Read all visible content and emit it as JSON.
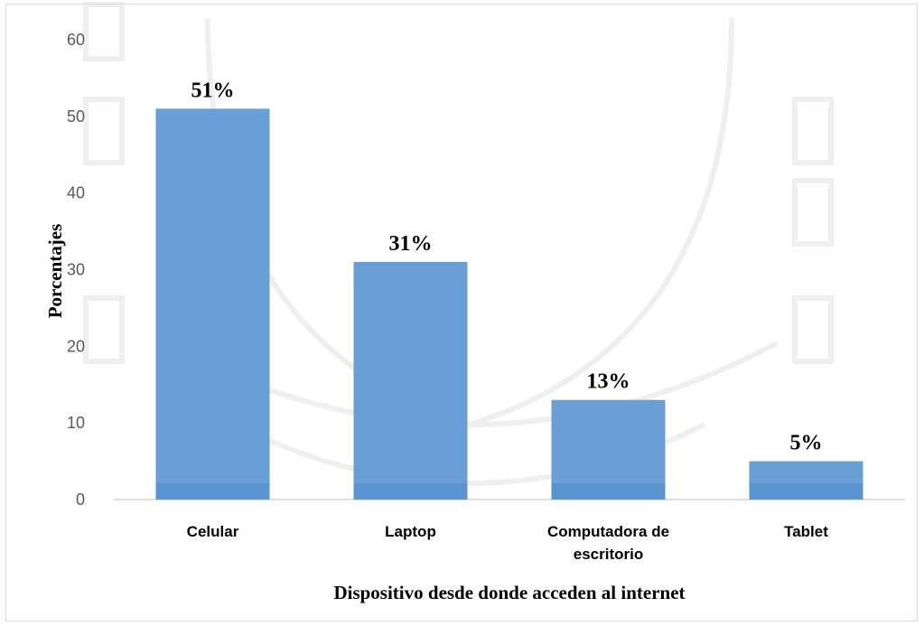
{
  "chart_data": {
    "type": "bar",
    "categories": [
      "Celular",
      "Laptop",
      "Computadora de escritorio",
      "Tablet"
    ],
    "category_lines": [
      [
        "Celular"
      ],
      [
        "Laptop"
      ],
      [
        "Computadora de",
        "escritorio"
      ],
      [
        "Tablet"
      ]
    ],
    "values": [
      51,
      31,
      13,
      5
    ],
    "data_labels": [
      "51%",
      "31%",
      "13%",
      "5%"
    ],
    "title": "",
    "xlabel": "Dispositivo desde donde acceden al internet",
    "ylabel": "Porcentajes",
    "ylim": [
      0,
      60
    ],
    "yticks": [
      0,
      10,
      20,
      30,
      40,
      50,
      60
    ],
    "grid": false,
    "legend": "none"
  },
  "colors": {
    "bar": "#6a9fd6",
    "bar_base": "#5b93d0",
    "axis": "#bfbfbf",
    "watermark": "#e9e9e9"
  }
}
